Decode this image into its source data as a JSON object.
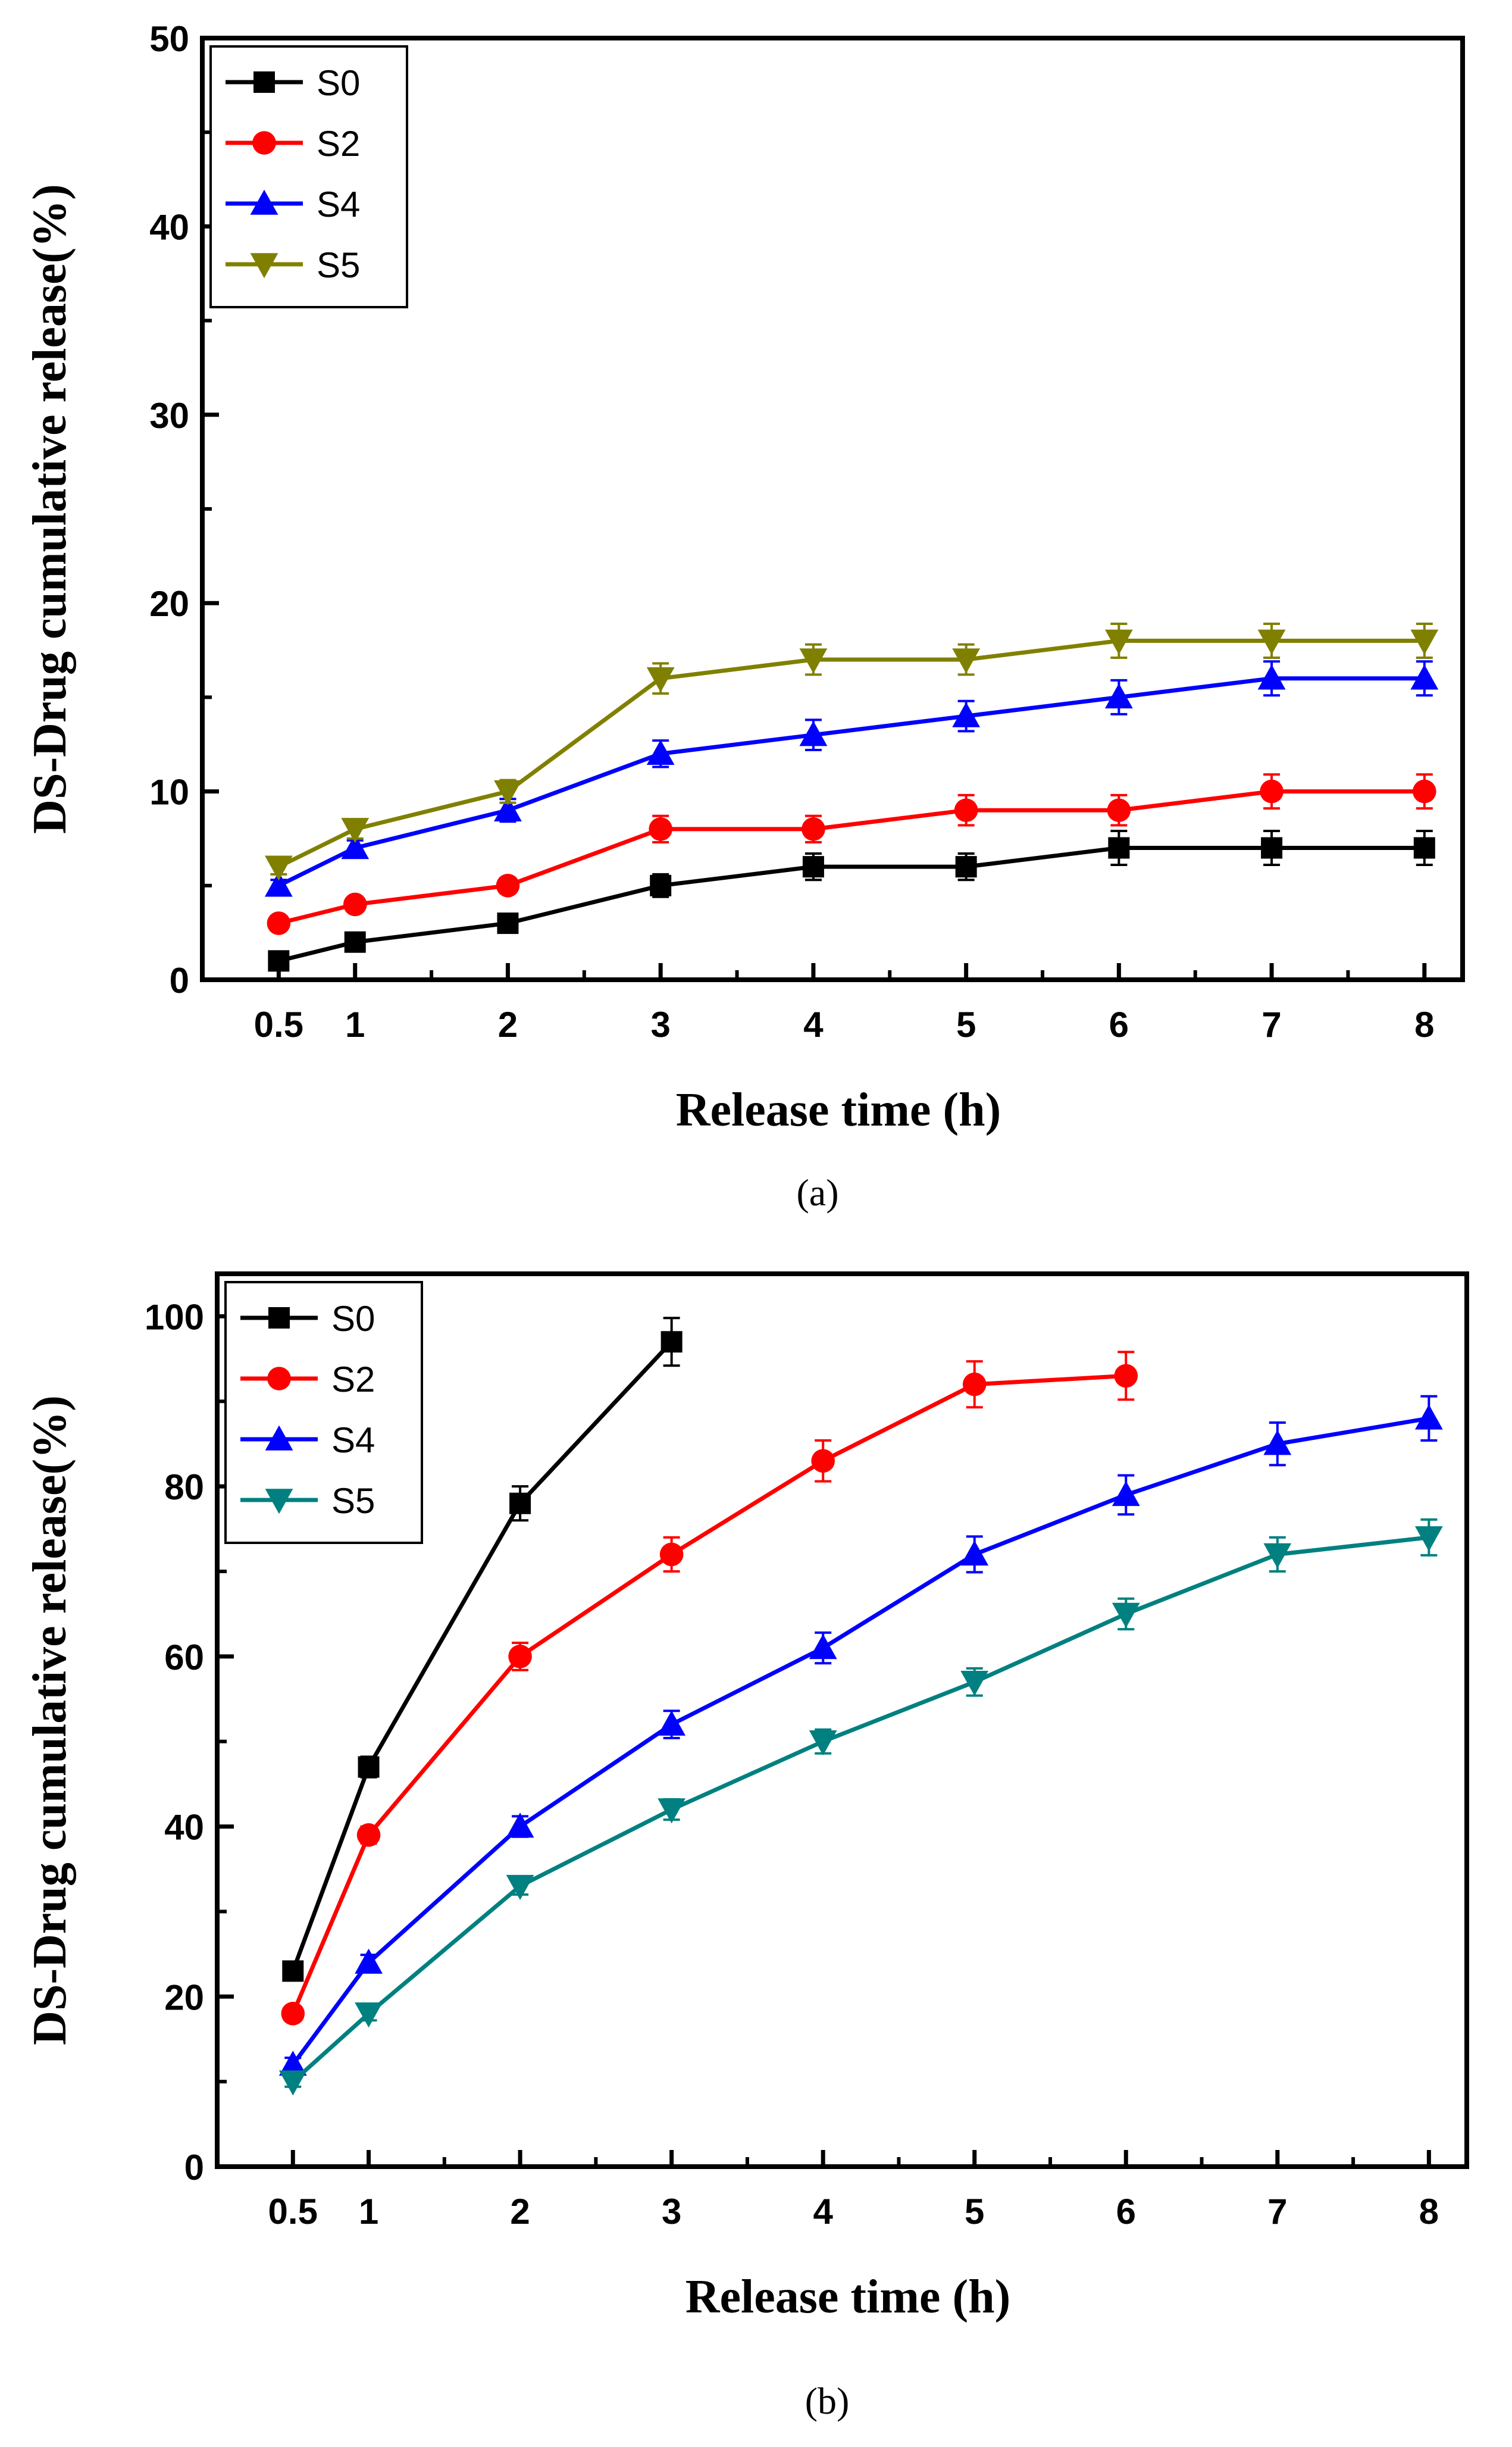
{
  "chart_data": [
    {
      "panel": "a",
      "caption": "(a)",
      "type": "line",
      "xlabel": "Release time (h)",
      "ylabel": "DS-Drug cumulative release(%)",
      "xlim": [
        0,
        8.25
      ],
      "ylim": [
        0,
        50
      ],
      "xticks": [
        0.5,
        1,
        2,
        3,
        4,
        5,
        6,
        7,
        8
      ],
      "xtick_labels": [
        "0.5",
        "1",
        "2",
        "3",
        "4",
        "5",
        "6",
        "7",
        "8"
      ],
      "yticks": [
        0,
        10,
        20,
        30,
        40,
        50
      ],
      "ytick_labels": [
        "0",
        "10",
        "20",
        "30",
        "40",
        "50"
      ],
      "legend_position": "top-left",
      "series": [
        {
          "name": "S0",
          "color": "#000000",
          "marker": "square",
          "x": [
            0.5,
            1,
            2,
            3,
            4,
            5,
            6,
            7,
            8
          ],
          "y": [
            1,
            2,
            3,
            5,
            6,
            6,
            7,
            7,
            7
          ],
          "err": [
            0.3,
            0.4,
            0.4,
            0.6,
            0.7,
            0.7,
            0.9,
            0.9,
            0.9
          ]
        },
        {
          "name": "S2",
          "color": "#ff0000",
          "marker": "circle",
          "x": [
            0.5,
            1,
            2,
            3,
            4,
            5,
            6,
            7,
            8
          ],
          "y": [
            3,
            4,
            5,
            8,
            8,
            9,
            9,
            10,
            10
          ],
          "err": [
            0.3,
            0.3,
            0.4,
            0.7,
            0.7,
            0.8,
            0.8,
            0.9,
            0.9
          ]
        },
        {
          "name": "S4",
          "color": "#0000ff",
          "marker": "triangle-up",
          "x": [
            0.5,
            1,
            2,
            3,
            4,
            5,
            6,
            7,
            8
          ],
          "y": [
            5,
            7,
            9,
            12,
            13,
            14,
            15,
            16,
            16
          ],
          "err": [
            0.3,
            0.4,
            0.6,
            0.7,
            0.8,
            0.8,
            0.9,
            0.9,
            0.9
          ]
        },
        {
          "name": "S5",
          "color": "#808000",
          "marker": "triangle-down",
          "x": [
            0.5,
            1,
            2,
            3,
            4,
            5,
            6,
            7,
            8
          ],
          "y": [
            6,
            8,
            10,
            16,
            17,
            17,
            18,
            18,
            18
          ],
          "err": [
            0.4,
            0.5,
            0.6,
            0.8,
            0.8,
            0.8,
            0.9,
            0.9,
            0.9
          ]
        }
      ]
    },
    {
      "panel": "b",
      "caption": "(b)",
      "type": "line",
      "xlabel": "Release time (h)",
      "ylabel": "DS-Drug cumulative release(%)",
      "xlim": [
        0,
        8.25
      ],
      "ylim": [
        0,
        105
      ],
      "xticks": [
        0.5,
        1,
        2,
        3,
        4,
        5,
        6,
        7,
        8
      ],
      "xtick_labels": [
        "0.5",
        "1",
        "2",
        "3",
        "4",
        "5",
        "6",
        "7",
        "8"
      ],
      "yticks": [
        0,
        20,
        40,
        60,
        80,
        100
      ],
      "ytick_labels": [
        "0",
        "20",
        "40",
        "60",
        "80",
        "100"
      ],
      "legend_position": "top-left",
      "series": [
        {
          "name": "S0",
          "color": "#000000",
          "marker": "square",
          "x": [
            0.5,
            1,
            2,
            3
          ],
          "y": [
            23,
            47,
            78,
            97
          ],
          "err": [
            0.8,
            1.2,
            2.0,
            2.8
          ]
        },
        {
          "name": "S2",
          "color": "#ff0000",
          "marker": "circle",
          "x": [
            0.5,
            1,
            2,
            3,
            4,
            5,
            6
          ],
          "y": [
            18,
            39,
            60,
            72,
            83,
            92,
            93
          ],
          "err": [
            0.8,
            1.0,
            1.6,
            2.0,
            2.4,
            2.7,
            2.8
          ]
        },
        {
          "name": "S4",
          "color": "#0000ff",
          "marker": "triangle-up",
          "x": [
            0.5,
            1,
            2,
            3,
            4,
            5,
            6,
            7,
            8
          ],
          "y": [
            12,
            24,
            40,
            52,
            61,
            72,
            79,
            85,
            88
          ],
          "err": [
            0.8,
            0.9,
            1.2,
            1.6,
            1.8,
            2.1,
            2.3,
            2.5,
            2.6
          ]
        },
        {
          "name": "S5",
          "color": "#008080",
          "marker": "triangle-down",
          "x": [
            0.5,
            1,
            2,
            3,
            4,
            5,
            6,
            7,
            8
          ],
          "y": [
            10,
            18,
            33,
            42,
            50,
            57,
            65,
            72,
            74
          ],
          "err": [
            0.6,
            0.8,
            1.0,
            1.2,
            1.4,
            1.6,
            1.8,
            2.0,
            2.1
          ]
        }
      ]
    }
  ]
}
